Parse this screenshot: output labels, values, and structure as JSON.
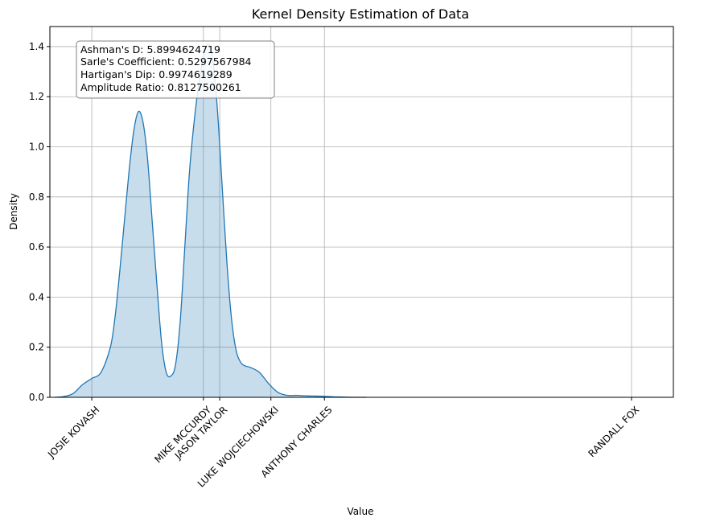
{
  "chart_data": {
    "type": "area",
    "title": "Kernel Density Estimation of Data",
    "xlabel": "Value",
    "ylabel": "Density",
    "xlim": [
      -0.3,
      13.1
    ],
    "ylim": [
      0,
      1.48
    ],
    "grid": true,
    "line_color": "#1f77b4",
    "fill_color": "#1f77b4",
    "y_ticks": [
      0.0,
      0.2,
      0.4,
      0.6,
      0.8,
      1.0,
      1.2,
      1.4
    ],
    "y_tick_labels": [
      "0.0",
      "0.2",
      "0.4",
      "0.6",
      "0.8",
      "1.0",
      "1.2",
      "1.4"
    ],
    "x_ticks": [
      0.6,
      3.0,
      3.35,
      4.45,
      5.6,
      12.2
    ],
    "x_tick_labels": [
      "JOSIE KOVASH",
      "MIKE MCCURDY",
      "JASON TAYLOR",
      "LUKE WOJCIECHOWSKI",
      "ANTHONY CHARLES",
      "RANDALL FOX"
    ],
    "density": {
      "x": [
        -0.2,
        0.0,
        0.2,
        0.4,
        0.6,
        0.8,
        1.0,
        1.1,
        1.2,
        1.3,
        1.4,
        1.5,
        1.6,
        1.7,
        1.8,
        1.9,
        2.0,
        2.1,
        2.2,
        2.3,
        2.4,
        2.5,
        2.6,
        2.7,
        2.8,
        2.9,
        3.0,
        3.1,
        3.2,
        3.3,
        3.4,
        3.5,
        3.6,
        3.7,
        3.8,
        3.9,
        4.0,
        4.2,
        4.4,
        4.6,
        4.8,
        5.0,
        5.2,
        5.4,
        5.6,
        5.8,
        6.0,
        6.2,
        6.5
      ],
      "y": [
        0.0,
        0.003,
        0.015,
        0.05,
        0.075,
        0.1,
        0.2,
        0.32,
        0.5,
        0.7,
        0.9,
        1.06,
        1.14,
        1.1,
        0.95,
        0.7,
        0.45,
        0.22,
        0.1,
        0.085,
        0.13,
        0.3,
        0.6,
        0.9,
        1.1,
        1.25,
        1.36,
        1.41,
        1.35,
        1.15,
        0.85,
        0.55,
        0.32,
        0.19,
        0.14,
        0.125,
        0.12,
        0.1,
        0.055,
        0.02,
        0.008,
        0.008,
        0.006,
        0.005,
        0.004,
        0.002,
        0.001,
        0.0,
        0.0
      ]
    },
    "annotation_lines": [
      "Ashman's D: 5.8994624719",
      "Sarle's Coefficient: 0.5297567984",
      "Hartigan's Dip: 0.9974619289",
      "Amplitude Ratio: 0.8127500261"
    ]
  }
}
